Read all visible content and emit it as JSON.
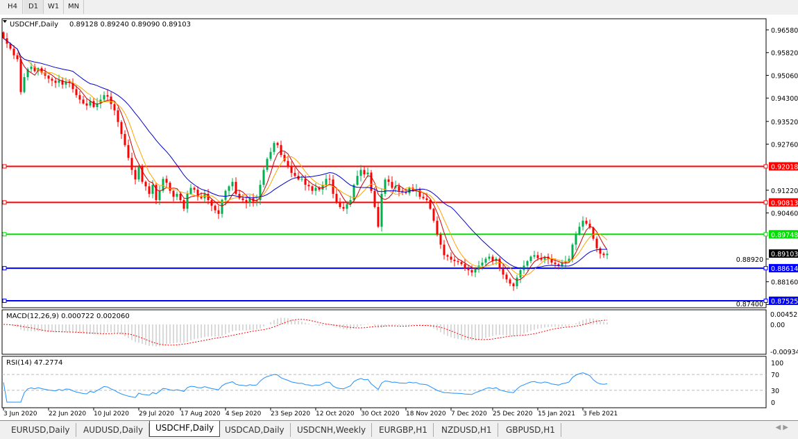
{
  "timeframes": [
    "H4",
    "D1",
    "W1",
    "MN"
  ],
  "active_timeframe": "D1",
  "chart": {
    "symbol_label": "USDCHF,Daily",
    "ohlc_label": "0.89128 0.89240 0.89090 0.89103",
    "current_price": "0.89103",
    "price_axis_labels": [
      "0.96580",
      "0.95820",
      "0.95060",
      "0.94300",
      "0.93520",
      "0.92760",
      "0.91220",
      "0.90460",
      "0.88920",
      "0.88160",
      "0.87400"
    ],
    "levels": [
      {
        "label": "0.92018",
        "color": "#ff0000"
      },
      {
        "label": "0.90813",
        "color": "#ff0000"
      },
      {
        "label": "0.89748",
        "color": "#00e000"
      },
      {
        "label": "0.88614",
        "color": "#0000ff"
      },
      {
        "label": "0.87525",
        "color": "#0000ff"
      }
    ],
    "colors": {
      "bull": "#00b050",
      "bear": "#ff0000",
      "ma_fast": "#cc0000",
      "ma_mid": "#ffa500",
      "ma_slow": "#0000cc"
    }
  },
  "macd": {
    "label": "MACD(12,26,9) 0.000722 0.002060",
    "axis_labels": [
      "0.004527",
      "0.00",
      "-0.009348"
    ]
  },
  "rsi": {
    "label": "RSI(14) 47.2774",
    "axis_labels": [
      "100",
      "70",
      "30",
      "0"
    ]
  },
  "date_labels": [
    "3 Jun 2020",
    "22 Jun 2020",
    "10 Jul 2020",
    "29 Jul 2020",
    "17 Aug 2020",
    "4 Sep 2020",
    "23 Sep 2020",
    "12 Oct 2020",
    "30 Oct 2020",
    "18 Nov 2020",
    "7 Dec 2020",
    "25 Dec 2020",
    "15 Jan 2021",
    "3 Feb 2021"
  ],
  "tabs": [
    "EURUSD,Daily",
    "AUDUSD,Daily",
    "USDCHF,Daily",
    "USDCAD,Daily",
    "USDCNH,Weekly",
    "EURGBP,H1",
    "NZDUSD,H1",
    "GBPUSD,H1"
  ],
  "active_tab": "USDCHF,Daily",
  "chart_data": {
    "type": "candlestick",
    "title": "USDCHF,Daily",
    "ylim": [
      0.874,
      0.968
    ],
    "closes": [
      0.963,
      0.9612,
      0.9595,
      0.9573,
      0.956,
      0.945,
      0.95,
      0.9527,
      0.9535,
      0.952,
      0.953,
      0.9515,
      0.9505,
      0.9495,
      0.9488,
      0.9481,
      0.949,
      0.9475,
      0.9485,
      0.9481,
      0.946,
      0.944,
      0.9425,
      0.9412,
      0.9405,
      0.942,
      0.94,
      0.9412,
      0.9425,
      0.944,
      0.9435,
      0.941,
      0.9389,
      0.935,
      0.931,
      0.9273,
      0.923,
      0.919,
      0.9158,
      0.92,
      0.915,
      0.9135,
      0.911,
      0.914,
      0.9089,
      0.912,
      0.916,
      0.9147,
      0.912,
      0.91,
      0.911,
      0.9089,
      0.906,
      0.911,
      0.913,
      0.9124,
      0.91,
      0.9095,
      0.911,
      0.9089,
      0.907,
      0.9055,
      0.9043,
      0.909,
      0.912,
      0.9135,
      0.915,
      0.911,
      0.9095,
      0.9089,
      0.908,
      0.9095,
      0.9085,
      0.9089,
      0.914,
      0.919,
      0.9227,
      0.925,
      0.928,
      0.9273,
      0.924,
      0.922,
      0.9204,
      0.918,
      0.917,
      0.9158,
      0.916,
      0.914,
      0.9135,
      0.912,
      0.913,
      0.9124,
      0.914,
      0.916,
      0.9158,
      0.911,
      0.908,
      0.9066,
      0.906,
      0.9075,
      0.9089,
      0.914,
      0.917,
      0.919,
      0.9175,
      0.9181,
      0.912,
      0.9066,
      0.9,
      0.911,
      0.9158,
      0.915,
      0.913,
      0.9135,
      0.912,
      0.9115,
      0.9112,
      0.913,
      0.912,
      0.9124,
      0.91,
      0.9095,
      0.9089,
      0.906,
      0.902,
      0.8974,
      0.894,
      0.8905,
      0.89,
      0.889,
      0.8885,
      0.8882,
      0.8875,
      0.886,
      0.8855,
      0.8847,
      0.886,
      0.887,
      0.888,
      0.8893,
      0.89,
      0.8885,
      0.8893,
      0.886,
      0.884,
      0.8824,
      0.881,
      0.8801,
      0.883,
      0.8855,
      0.887,
      0.8885,
      0.89,
      0.8905,
      0.8895,
      0.889,
      0.89,
      0.8893,
      0.888,
      0.8875,
      0.887,
      0.888,
      0.8885,
      0.8893,
      0.894,
      0.8974,
      0.9,
      0.902,
      0.901,
      0.8997,
      0.896,
      0.8928,
      0.891,
      0.8905,
      0.891
    ]
  }
}
